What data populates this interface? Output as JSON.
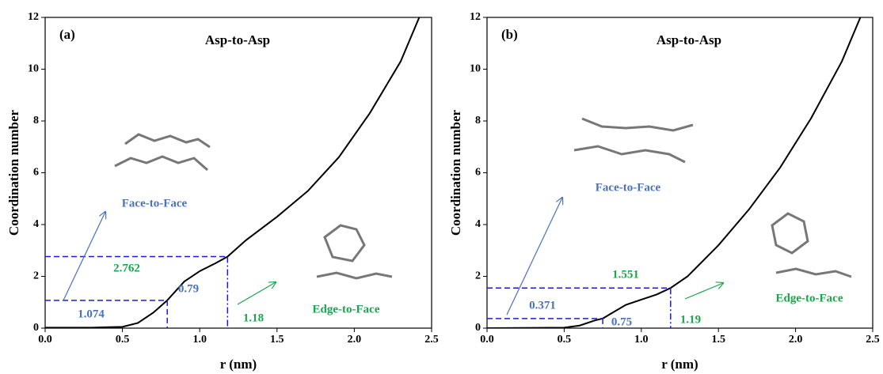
{
  "chart_data": [
    {
      "type": "line",
      "panel_label": "(a)",
      "title": "Asp-to-Asp",
      "x_label": "r (nm)",
      "y_label": "Coordination number",
      "x": [
        0,
        0.3,
        0.5,
        0.6,
        0.7,
        0.79,
        0.9,
        1.0,
        1.1,
        1.18,
        1.3,
        1.5,
        1.7,
        1.9,
        2.1,
        2.3,
        2.42
      ],
      "values": [
        0.02,
        0.02,
        0.05,
        0.2,
        0.6,
        1.074,
        1.8,
        2.2,
        2.5,
        2.762,
        3.4,
        4.3,
        5.3,
        6.6,
        8.3,
        10.3,
        12
      ],
      "color": "#000000",
      "xlim": [
        0,
        2.5
      ],
      "ylim": [
        0,
        12
      ],
      "xticks": [
        {
          "value": 0,
          "label": "0.0"
        },
        {
          "value": 0.5,
          "label": "0.5"
        },
        {
          "value": 1,
          "label": "1.0"
        },
        {
          "value": 1.5,
          "label": "1.5"
        },
        {
          "value": 2,
          "label": "2.0"
        },
        {
          "value": 2.5,
          "label": "2.5"
        }
      ],
      "yticks": [
        0,
        2,
        4,
        6,
        8,
        10,
        12
      ],
      "markers": [
        {
          "x": 0.79,
          "y": 1.074
        },
        {
          "x": 1.18,
          "y": 2.762
        }
      ],
      "annotations": [
        "Face-to-Face",
        "Edge-to-Face"
      ]
    },
    {
      "type": "line",
      "panel_label": "(b)",
      "title": "Asp-to-Asp",
      "x_label": "r (nm)",
      "y_label": "Coordination number",
      "x": [
        0,
        0.3,
        0.5,
        0.6,
        0.7,
        0.75,
        0.8,
        0.9,
        1.0,
        1.1,
        1.19,
        1.3,
        1.5,
        1.7,
        1.9,
        2.1,
        2.3,
        2.42
      ],
      "values": [
        0,
        0.01,
        0.02,
        0.1,
        0.3,
        0.371,
        0.55,
        0.9,
        1.1,
        1.3,
        1.551,
        2.0,
        3.2,
        4.6,
        6.2,
        8.1,
        10.3,
        12
      ],
      "color": "#000000",
      "xlim": [
        0,
        2.5
      ],
      "ylim": [
        0,
        12
      ],
      "xticks": [
        {
          "value": 0,
          "label": "0.0"
        },
        {
          "value": 0.5,
          "label": "0.5"
        },
        {
          "value": 1,
          "label": "1.0"
        },
        {
          "value": 1.5,
          "label": "1.5"
        },
        {
          "value": 2,
          "label": "2.0"
        },
        {
          "value": 2.5,
          "label": "2.5"
        }
      ],
      "yticks": [
        0,
        2,
        4,
        6,
        8,
        10,
        12
      ],
      "markers": [
        {
          "x": 0.75,
          "y": 0.371
        },
        {
          "x": 1.19,
          "y": 1.551
        }
      ],
      "annotations": [
        "Face-to-Face",
        "Edge-to-Face"
      ]
    }
  ]
}
